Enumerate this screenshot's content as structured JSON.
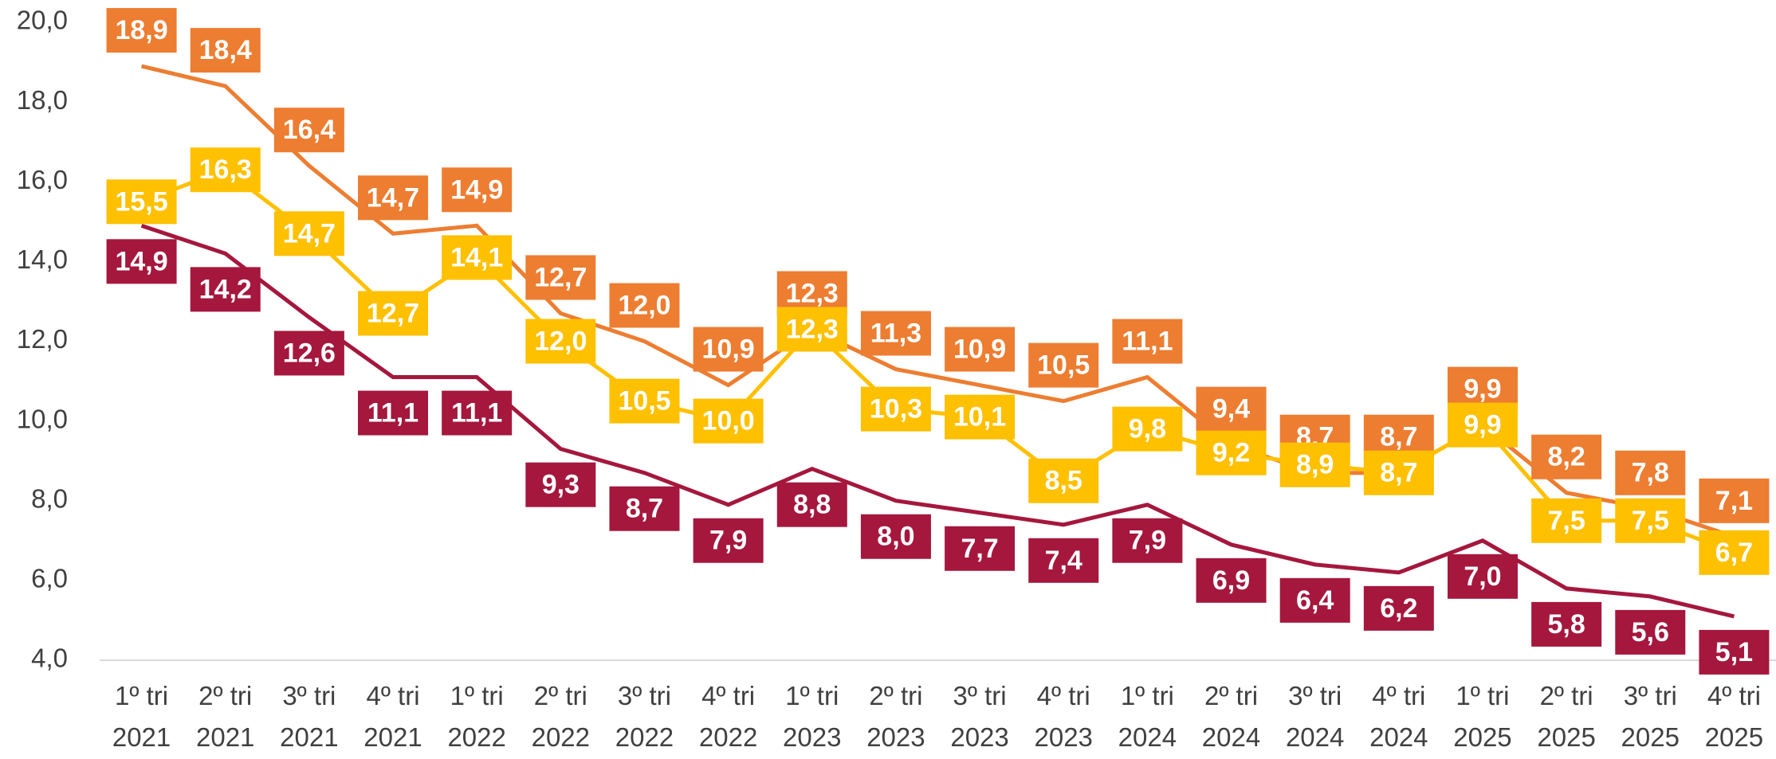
{
  "chart_data": {
    "type": "line",
    "categories": [
      "1º tri 2021",
      "2º tri 2021",
      "3º tri 2021",
      "4º tri 2021",
      "1º tri 2022",
      "2º tri 2022",
      "3º tri 2022",
      "4º tri 2022",
      "1º tri 2023",
      "2º tri 2023",
      "3º tri 2023",
      "4º tri 2023",
      "1º tri 2024",
      "2º tri 2024",
      "3º tri 2024",
      "4º tri 2024",
      "1º tri 2025",
      "2º tri 2025",
      "3º tri 2025",
      "4º tri 2025"
    ],
    "series": [
      {
        "color": "#ED7D31",
        "values": [
          18.9,
          18.4,
          16.4,
          14.7,
          14.9,
          12.7,
          12.0,
          10.9,
          12.3,
          11.3,
          10.9,
          10.5,
          11.1,
          9.4,
          8.7,
          8.7,
          9.9,
          8.2,
          7.8,
          7.1
        ],
        "value_labels": [
          "18,9",
          "18,4",
          "16,4",
          "14,7",
          "14,9",
          "12,7",
          "12,0",
          "10,9",
          "12,3",
          "11,3",
          "10,9",
          "10,5",
          "11,1",
          "9,4",
          "8,7",
          "8,7",
          "9,9",
          "8,2",
          "7,8",
          "7,1"
        ]
      },
      {
        "color": "#FFC000",
        "values": [
          15.5,
          16.3,
          14.7,
          12.7,
          14.1,
          12.0,
          10.5,
          10.0,
          12.3,
          10.3,
          10.1,
          8.5,
          9.8,
          9.2,
          8.9,
          8.7,
          9.9,
          7.5,
          7.5,
          6.7
        ],
        "value_labels": [
          "15,5",
          "16,3",
          "14,7",
          "12,7",
          "14,1",
          "12,0",
          "10,5",
          "10,0",
          "12,3",
          "10,3",
          "10,1",
          "8,5",
          "9,8",
          "9,2",
          "8,9",
          "8,7",
          "9,9",
          "7,5",
          "7,5",
          "6,7"
        ]
      },
      {
        "color": "#A5173D",
        "values": [
          14.9,
          14.2,
          12.6,
          11.1,
          11.1,
          9.3,
          8.7,
          7.9,
          8.8,
          8.0,
          7.7,
          7.4,
          7.9,
          6.9,
          6.4,
          6.2,
          7.0,
          5.8,
          5.6,
          5.1
        ],
        "value_labels": [
          "14,9",
          "14,2",
          "12,6",
          "11,1",
          "11,1",
          "9,3",
          "8,7",
          "7,9",
          "8,8",
          "8,0",
          "7,7",
          "7,4",
          "7,9",
          "6,9",
          "6,4",
          "6,2",
          "7,0",
          "5,8",
          "5,6",
          "5,1"
        ]
      }
    ],
    "ylim": [
      4,
      20
    ],
    "yticks": [
      {
        "value": 4,
        "label": "4,0"
      },
      {
        "value": 6,
        "label": "6,0"
      },
      {
        "value": 8,
        "label": "8,0"
      },
      {
        "value": 10,
        "label": "10,0"
      },
      {
        "value": 12,
        "label": "12,0"
      },
      {
        "value": 14,
        "label": "14,0"
      },
      {
        "value": 16,
        "label": "16,0"
      },
      {
        "value": 18,
        "label": "18,0"
      },
      {
        "value": 20,
        "label": "20,0"
      }
    ]
  }
}
